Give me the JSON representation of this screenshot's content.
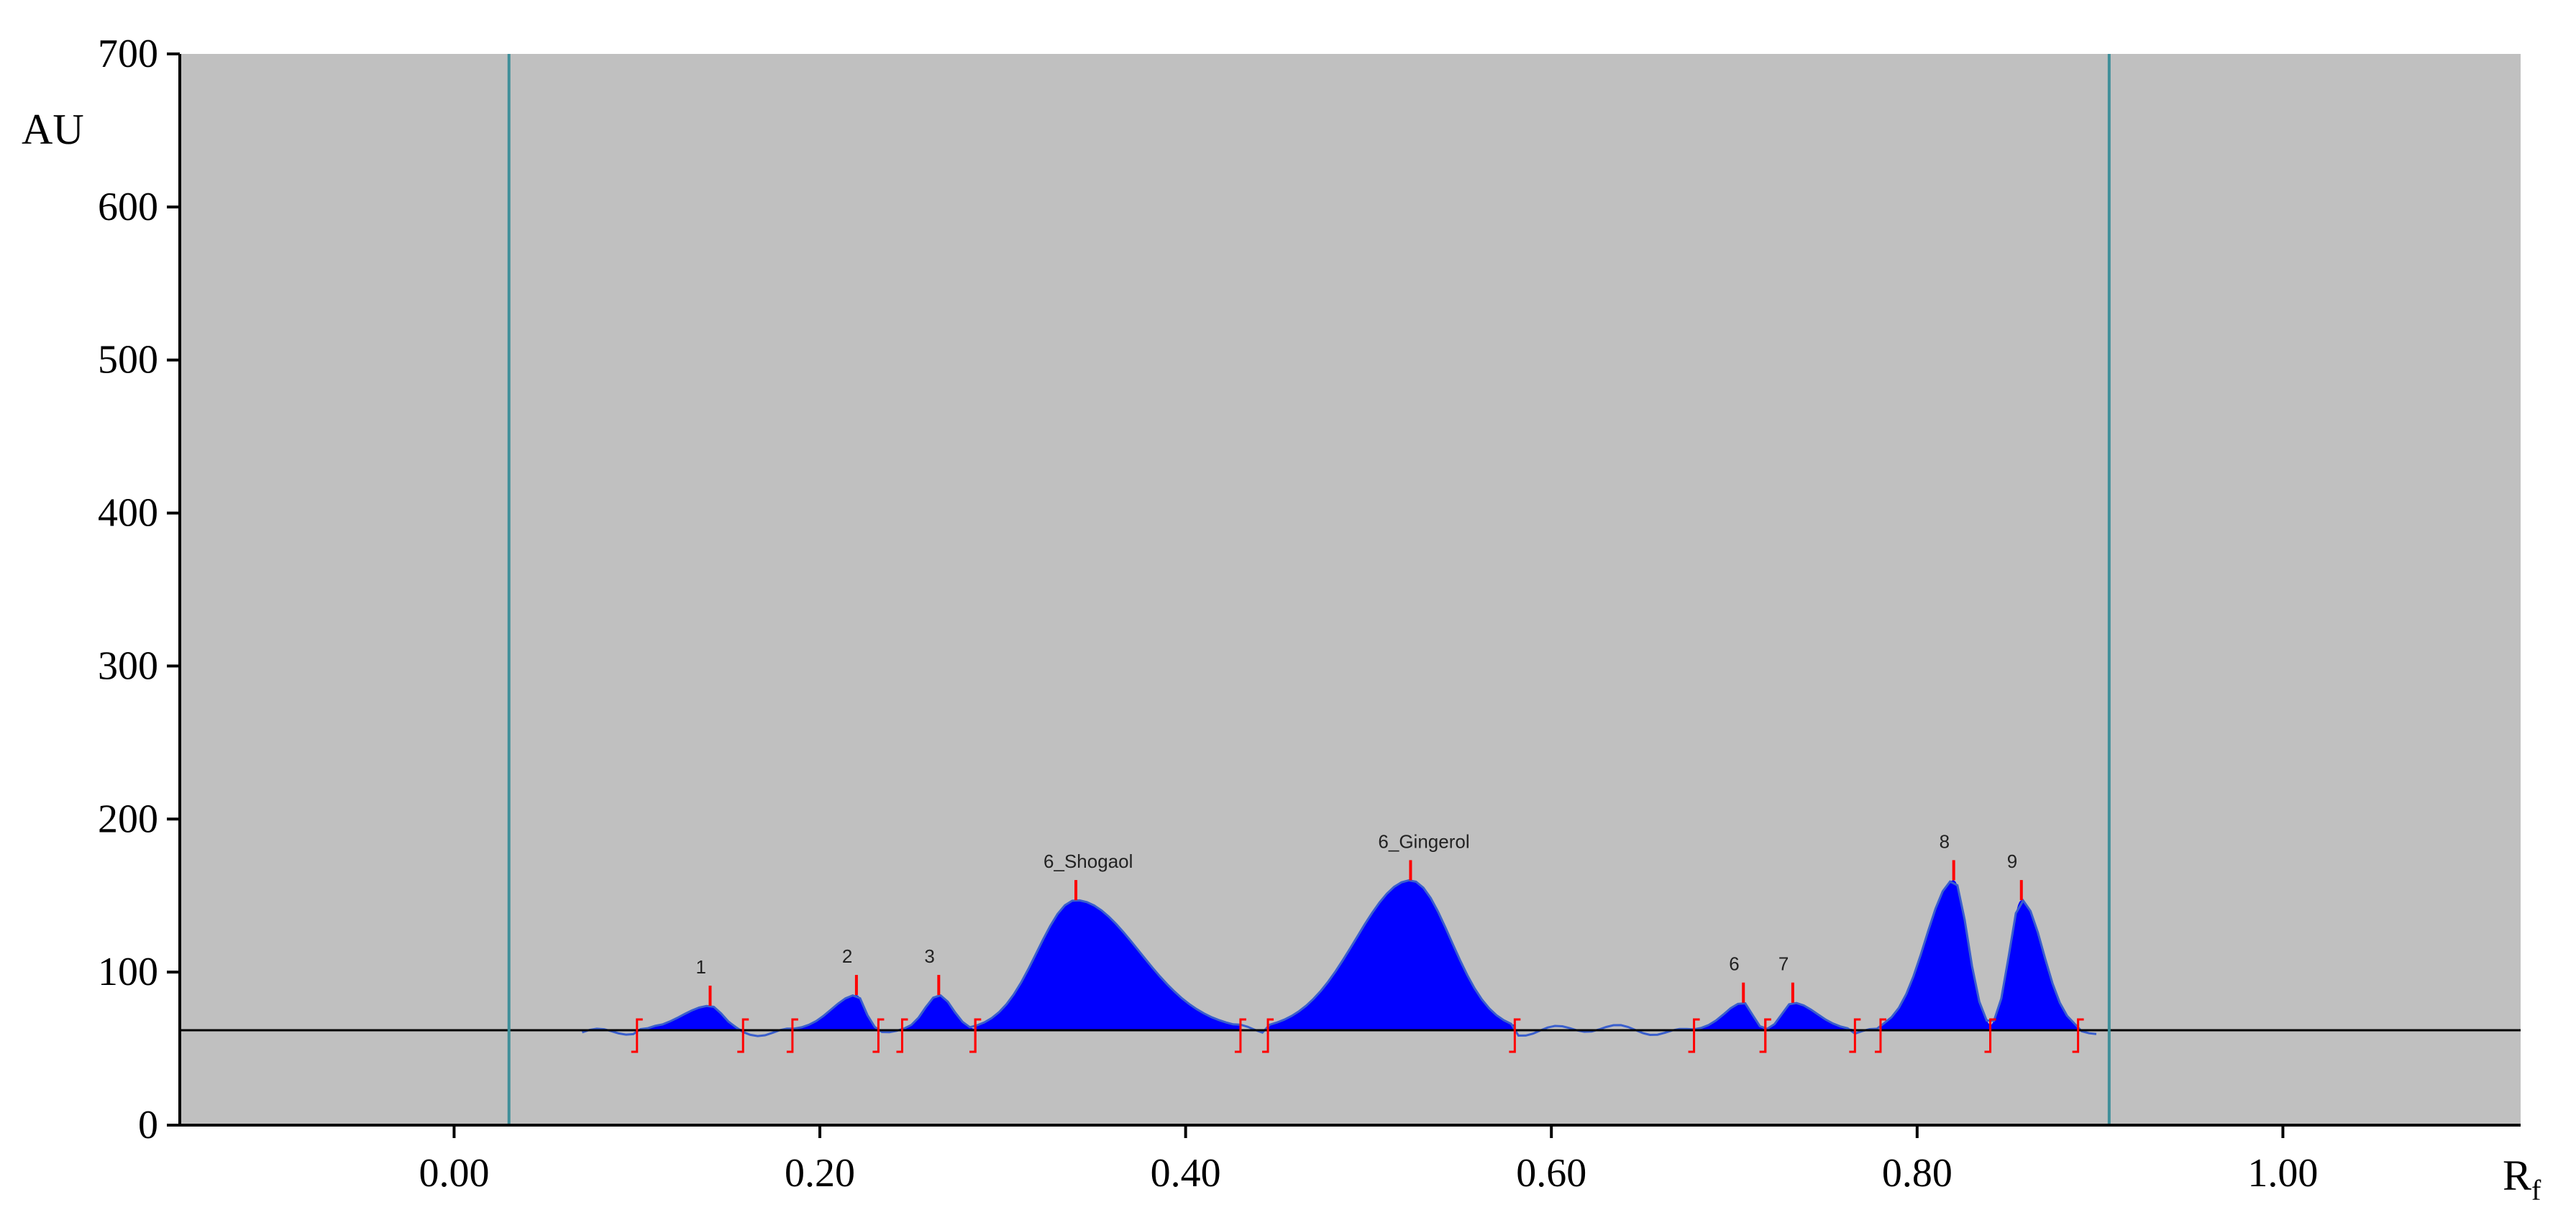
{
  "chart_data": {
    "type": "area",
    "title": "",
    "xlabel": "Rf",
    "ylabel": "AU",
    "xlim": [
      -0.15,
      1.13
    ],
    "ylim": [
      0,
      700
    ],
    "x_ticks": [
      0.0,
      0.2,
      0.4,
      0.6,
      0.8,
      1.0
    ],
    "x_tick_labels": [
      "0.00",
      "0.20",
      "0.40",
      "0.60",
      "0.80",
      "1.00"
    ],
    "y_ticks": [
      0,
      100,
      200,
      300,
      400,
      500,
      600,
      700
    ],
    "y_tick_labels": [
      "0",
      "100",
      "200",
      "300",
      "400",
      "500",
      "600",
      "700"
    ],
    "grid": false,
    "baseline": 62,
    "vertical_markers": [
      0.03,
      0.905
    ],
    "colors": {
      "plot_background": "#c0c0c0",
      "fill": "#0000ff",
      "trace": "#3a5fcd",
      "marker_line": "#3f8f99",
      "peak_marks": "#ff0000",
      "baseline": "#000000"
    },
    "peaks": [
      {
        "label": "1",
        "rf": 0.14,
        "height": 78,
        "start": 0.1,
        "end": 0.158
      },
      {
        "label": "2",
        "rf": 0.22,
        "height": 85,
        "start": 0.185,
        "end": 0.232
      },
      {
        "label": "3",
        "rf": 0.265,
        "height": 85,
        "start": 0.245,
        "end": 0.285
      },
      {
        "label": "6_Shogaol",
        "rf": 0.34,
        "height": 147,
        "start": 0.285,
        "end": 0.43
      },
      {
        "label": "6_Gingerol",
        "rf": 0.523,
        "height": 160,
        "start": 0.445,
        "end": 0.58
      },
      {
        "label": "6",
        "rf": 0.705,
        "height": 80,
        "start": 0.678,
        "end": 0.717
      },
      {
        "label": "7",
        "rf": 0.732,
        "height": 80,
        "start": 0.717,
        "end": 0.766
      },
      {
        "label": "8",
        "rf": 0.82,
        "height": 160,
        "start": 0.78,
        "end": 0.84
      },
      {
        "label": "9",
        "rf": 0.857,
        "height": 147,
        "start": 0.84,
        "end": 0.888
      }
    ]
  }
}
